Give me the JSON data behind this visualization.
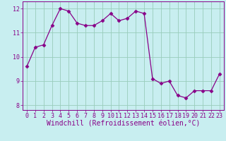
{
  "x": [
    0,
    1,
    2,
    3,
    4,
    5,
    6,
    7,
    8,
    9,
    10,
    11,
    12,
    13,
    14,
    15,
    16,
    17,
    18,
    19,
    20,
    21,
    22,
    23
  ],
  "y": [
    9.6,
    10.4,
    10.5,
    11.3,
    12.0,
    11.9,
    11.4,
    11.3,
    11.3,
    11.5,
    11.8,
    11.5,
    11.6,
    11.9,
    11.8,
    9.1,
    8.9,
    9.0,
    8.4,
    8.3,
    8.6,
    8.6,
    8.6,
    9.3
  ],
  "line_color": "#880088",
  "marker": "D",
  "marker_size": 2.5,
  "bg_color": "#c8eef0",
  "grid_color": "#99ccbb",
  "xlabel": "Windchill (Refroidissement éolien,°C)",
  "xlabel_color": "#880088",
  "xlabel_fontsize": 7,
  "tick_color": "#880088",
  "tick_fontsize": 6,
  "ylim": [
    7.8,
    12.3
  ],
  "xlim": [
    -0.5,
    23.5
  ],
  "yticks": [
    8,
    9,
    10,
    11,
    12
  ],
  "xticks": [
    0,
    1,
    2,
    3,
    4,
    5,
    6,
    7,
    8,
    9,
    10,
    11,
    12,
    13,
    14,
    15,
    16,
    17,
    18,
    19,
    20,
    21,
    22,
    23
  ]
}
